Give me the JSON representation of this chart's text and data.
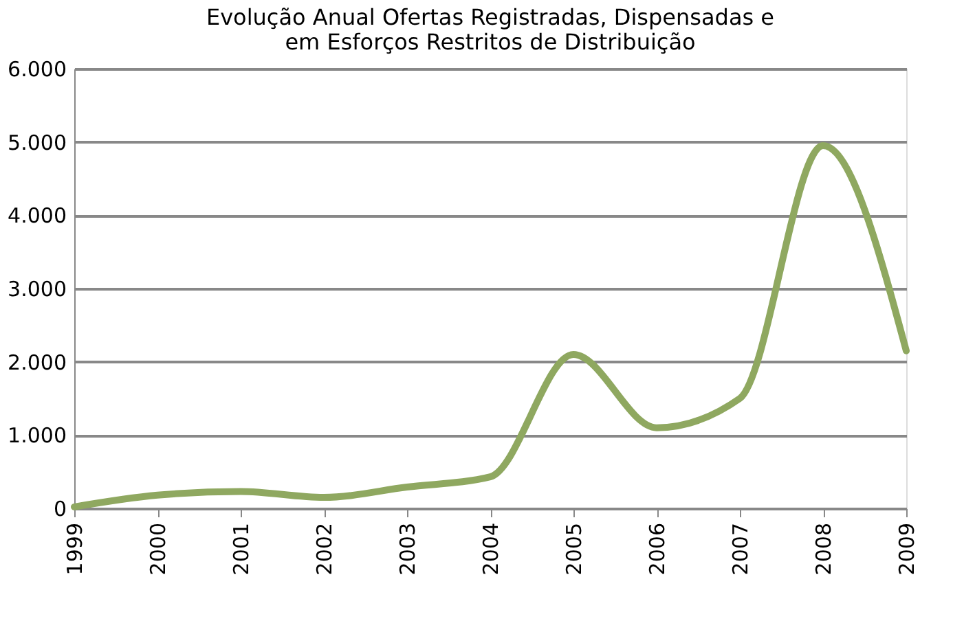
{
  "chart_data": {
    "type": "line",
    "title": [
      "Evolução Anual Ofertas Registradas, Dispensadas e",
      "em Esforços Restritos de Distribuição"
    ],
    "categories": [
      "1999",
      "2000",
      "2001",
      "2002",
      "2003",
      "2004",
      "2005",
      "2006",
      "2007",
      "2008",
      "2009"
    ],
    "series": [
      {
        "color": "#8fa860",
        "values": [
          20,
          180,
          230,
          150,
          290,
          430,
          2100,
          1100,
          1500,
          4950,
          2150
        ]
      }
    ],
    "ylim": [
      0,
      6000
    ],
    "yticks": [
      {
        "value": 0,
        "label": "0"
      },
      {
        "value": 1000,
        "label": "1.000"
      },
      {
        "value": 2000,
        "label": "2.000"
      },
      {
        "value": 3000,
        "label": "3.000"
      },
      {
        "value": 4000,
        "label": "4.000"
      },
      {
        "value": 5000,
        "label": "5.000"
      },
      {
        "value": 6000,
        "label": "6.000"
      }
    ],
    "grid": "y",
    "marker": "none",
    "line_style": "solid"
  }
}
